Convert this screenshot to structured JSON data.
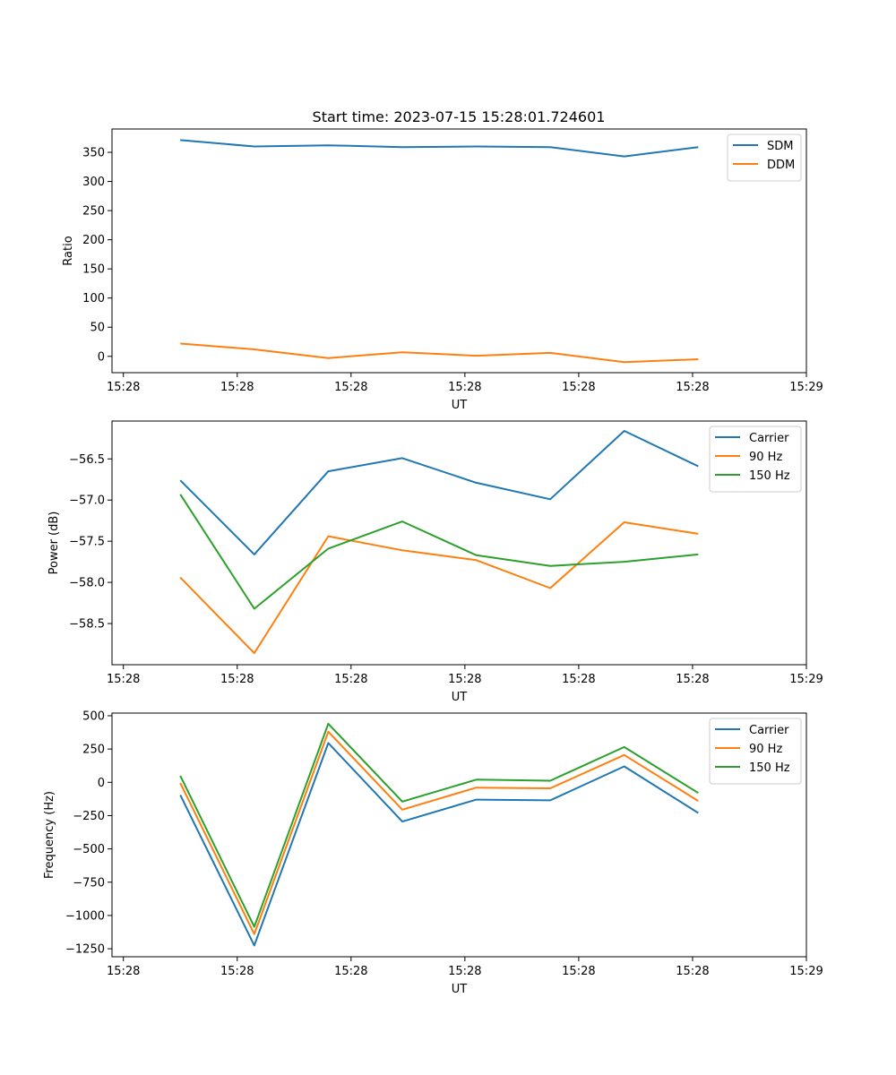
{
  "figure_title": "Start time: 2023-07-15 15:28:01.724601",
  "x_tick_labels": [
    "15:28",
    "15:28",
    "15:28",
    "15:28",
    "15:28",
    "15:28",
    "15:29"
  ],
  "x_label": "UT",
  "chart_data": [
    {
      "type": "line",
      "title": "Start time: 2023-07-15 15:28:01.724601",
      "xlabel": "UT",
      "ylabel": "Ratio",
      "x": [
        0.5,
        1.15,
        1.8,
        2.45,
        3.1,
        3.75,
        4.4,
        5.05
      ],
      "xlim": [
        -0.1,
        6.0
      ],
      "ylim": [
        -28,
        390
      ],
      "yticks": [
        0,
        50,
        100,
        150,
        200,
        250,
        300,
        350
      ],
      "legend": "top-right",
      "series": [
        {
          "name": "SDM",
          "color": "#1f77b4",
          "values": [
            371,
            360,
            362,
            359,
            360,
            359,
            343,
            359
          ]
        },
        {
          "name": "DDM",
          "color": "#ff7f0e",
          "values": [
            22,
            12,
            -3,
            7,
            1,
            6,
            -10,
            -5
          ]
        }
      ]
    },
    {
      "type": "line",
      "title": "",
      "xlabel": "UT",
      "ylabel": "Power (dB)",
      "x": [
        0.5,
        1.15,
        1.8,
        2.45,
        3.1,
        3.75,
        4.4,
        5.05
      ],
      "xlim": [
        -0.1,
        6.0
      ],
      "ylim": [
        -59.0,
        -56.04
      ],
      "yticks": [
        -58.5,
        -58.0,
        -57.5,
        -57.0,
        -56.5
      ],
      "ytick_labels": [
        "−58.5",
        "−58.0",
        "−57.5",
        "−57.0",
        "−56.5"
      ],
      "legend": "top-right",
      "series": [
        {
          "name": "Carrier",
          "color": "#1f77b4",
          "values": [
            -56.76,
            -57.66,
            -56.65,
            -56.49,
            -56.79,
            -56.99,
            -56.16,
            -56.59
          ]
        },
        {
          "name": "90 Hz",
          "color": "#ff7f0e",
          "values": [
            -57.94,
            -58.86,
            -57.44,
            -57.61,
            -57.73,
            -58.07,
            -57.27,
            -57.41
          ]
        },
        {
          "name": "150 Hz",
          "color": "#2ca02c",
          "values": [
            -56.93,
            -58.32,
            -57.59,
            -57.26,
            -57.67,
            -57.8,
            -57.75,
            -57.66
          ]
        }
      ]
    },
    {
      "type": "line",
      "title": "",
      "xlabel": "UT",
      "ylabel": "Frequency (Hz)",
      "x": [
        0.5,
        1.15,
        1.8,
        2.45,
        3.1,
        3.75,
        4.4,
        5.05
      ],
      "xlim": [
        -0.1,
        6.0
      ],
      "ylim": [
        -1310,
        520
      ],
      "yticks": [
        -1250,
        -1000,
        -750,
        -500,
        -250,
        0,
        250,
        500
      ],
      "ytick_labels": [
        "−1250",
        "−1000",
        "−750",
        "−500",
        "−250",
        "0",
        "250",
        "500"
      ],
      "legend": "top-right",
      "series": [
        {
          "name": "Carrier",
          "color": "#1f77b4",
          "values": [
            -95,
            -1225,
            295,
            -295,
            -130,
            -135,
            120,
            -230
          ]
        },
        {
          "name": "90 Hz",
          "color": "#ff7f0e",
          "values": [
            -5,
            -1140,
            380,
            -205,
            -40,
            -45,
            205,
            -140
          ]
        },
        {
          "name": "150 Hz",
          "color": "#2ca02c",
          "values": [
            50,
            -1085,
            440,
            -145,
            20,
            12,
            265,
            -80
          ]
        }
      ]
    }
  ]
}
